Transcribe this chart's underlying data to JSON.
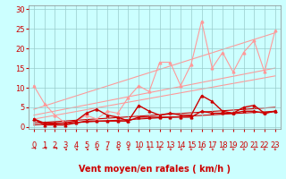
{
  "x": [
    0,
    1,
    2,
    3,
    4,
    5,
    6,
    7,
    8,
    9,
    10,
    11,
    12,
    13,
    14,
    15,
    16,
    17,
    18,
    19,
    20,
    21,
    22,
    23
  ],
  "series_light_jagged": {
    "y": [
      10.5,
      6.0,
      3.0,
      1.0,
      1.5,
      3.0,
      2.0,
      4.0,
      3.5,
      7.5,
      10.5,
      9.0,
      16.5,
      16.5,
      10.5,
      16.0,
      27.0,
      15.0,
      19.0,
      14.0,
      19.0,
      22.0,
      14.0,
      24.5
    ],
    "color": "#ff9999",
    "lw": 0.8,
    "marker": "^",
    "ms": 2.0
  },
  "series_dark_jagged": {
    "y": [
      2.0,
      1.0,
      1.0,
      1.0,
      1.5,
      3.5,
      4.5,
      3.0,
      2.5,
      1.5,
      5.5,
      4.0,
      3.0,
      3.5,
      3.0,
      3.0,
      8.0,
      6.5,
      4.0,
      3.5,
      5.0,
      5.5,
      3.5,
      4.0
    ],
    "color": "#cc0000",
    "lw": 1.0,
    "marker": "^",
    "ms": 2.0
  },
  "series_dark_low": {
    "y": [
      2.0,
      0.5,
      0.5,
      0.5,
      1.0,
      1.5,
      1.5,
      1.5,
      1.5,
      1.5,
      2.5,
      2.5,
      2.5,
      2.5,
      2.5,
      2.5,
      4.0,
      3.5,
      3.5,
      3.5,
      4.0,
      4.0,
      3.5,
      4.0
    ],
    "color": "#cc0000",
    "lw": 1.0,
    "marker": "^",
    "ms": 2.0
  },
  "trend_lines": [
    {
      "p0": [
        0,
        0.5
      ],
      "p1": [
        23,
        4.0
      ],
      "color": "#cc0000",
      "lw": 0.8
    },
    {
      "p0": [
        0,
        1.0
      ],
      "p1": [
        23,
        5.0
      ],
      "color": "#cc0000",
      "lw": 0.8
    },
    {
      "p0": [
        0,
        2.0
      ],
      "p1": [
        23,
        13.0
      ],
      "color": "#ff9999",
      "lw": 0.8
    },
    {
      "p0": [
        0,
        3.0
      ],
      "p1": [
        23,
        15.0
      ],
      "color": "#ff9999",
      "lw": 0.8
    },
    {
      "p0": [
        0,
        4.5
      ],
      "p1": [
        23,
        24.0
      ],
      "color": "#ff9999",
      "lw": 0.8
    }
  ],
  "xlabel": "Vent moyen/en rafales ( km/h )",
  "xlim": [
    -0.5,
    23.5
  ],
  "ylim": [
    -0.5,
    31
  ],
  "yticks": [
    0,
    5,
    10,
    15,
    20,
    25,
    30
  ],
  "xticks": [
    0,
    1,
    2,
    3,
    4,
    5,
    6,
    7,
    8,
    9,
    10,
    11,
    12,
    13,
    14,
    15,
    16,
    17,
    18,
    19,
    20,
    21,
    22,
    23
  ],
  "bg_color": "#ccffff",
  "grid_color": "#99cccc",
  "xlabel_color": "#cc0000",
  "xlabel_fontsize": 7,
  "tick_color": "#cc0000",
  "tick_fontsize": 6,
  "arrow_row": [
    "→",
    "→",
    "→",
    "↘",
    "↘",
    "↘",
    "↘",
    "↓",
    "↘",
    "↓",
    "↓",
    "↓",
    "↓",
    "↓",
    "↓",
    "↓",
    "↓",
    "↓",
    "↓",
    "↓",
    "↓",
    "↓",
    "↓",
    "↓"
  ]
}
